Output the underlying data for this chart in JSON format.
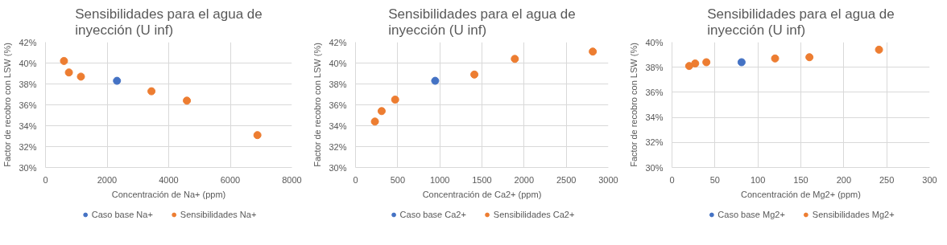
{
  "chart_data": [
    {
      "type": "scatter",
      "title": "Sensibilidades para el agua de inyección (U inf)",
      "xlabel": "Concentración de Na+ (ppm)",
      "ylabel": "Factor de recobro con LSW (%)",
      "xlim": [
        0,
        8000
      ],
      "xticks": [
        0,
        2000,
        4000,
        6000,
        8000
      ],
      "ylim": [
        30,
        42
      ],
      "yticks": [
        {
          "value": 30,
          "label": "30%"
        },
        {
          "value": 32,
          "label": "32%"
        },
        {
          "value": 34,
          "label": "34%"
        },
        {
          "value": 36,
          "label": "36%"
        },
        {
          "value": 38,
          "label": "38%"
        },
        {
          "value": 40,
          "label": "40%"
        },
        {
          "value": 42,
          "label": "42%"
        }
      ],
      "grid": true,
      "legend": "bottom",
      "marker": "circle",
      "series": [
        {
          "name": "Caso base Na+",
          "color": "#4472c4",
          "x": [
            2320
          ],
          "values": [
            38.3
          ]
        },
        {
          "name": "Sensibilidades Na+",
          "color": "#ed7d31",
          "x": [
            600,
            760,
            1150,
            3440,
            4590,
            6880
          ],
          "values": [
            40.2,
            39.1,
            38.7,
            37.3,
            36.4,
            33.1
          ]
        }
      ]
    },
    {
      "type": "scatter",
      "title": "Sensibilidades para el agua de inyección (U inf)",
      "xlabel": "Concentración de Ca2+ (ppm)",
      "ylabel": "Factor de recobro con LSW (%)",
      "xlim": [
        0,
        3000
      ],
      "xticks": [
        0,
        500,
        1000,
        1500,
        2000,
        2500,
        3000
      ],
      "ylim": [
        30,
        42
      ],
      "yticks": [
        {
          "value": 30,
          "label": "30%"
        },
        {
          "value": 32,
          "label": "32%"
        },
        {
          "value": 34,
          "label": "34%"
        },
        {
          "value": 36,
          "label": "36%"
        },
        {
          "value": 38,
          "label": "38%"
        },
        {
          "value": 40,
          "label": "40%"
        },
        {
          "value": 42,
          "label": "42%"
        }
      ],
      "grid": true,
      "legend": "bottom",
      "marker": "circle",
      "series": [
        {
          "name": "Caso base Ca2+",
          "color": "#4472c4",
          "x": [
            945
          ],
          "values": [
            38.3
          ]
        },
        {
          "name": "Sensibilidades Ca2+",
          "color": "#ed7d31",
          "x": [
            230,
            310,
            470,
            1410,
            1890,
            2815
          ],
          "values": [
            34.4,
            35.4,
            36.5,
            38.9,
            40.4,
            41.1
          ]
        }
      ]
    },
    {
      "type": "scatter",
      "title": "Sensibilidades para el agua de inyección (U inf)",
      "xlabel": "Concentración de Mg2+ (ppm)",
      "ylabel": "Factor de recobro con LSW (%)",
      "xlim": [
        0,
        300
      ],
      "xticks": [
        0,
        50,
        100,
        150,
        200,
        250,
        300
      ],
      "ylim": [
        30,
        40
      ],
      "yticks": [
        {
          "value": 30,
          "label": "30%"
        },
        {
          "value": 32,
          "label": "32%"
        },
        {
          "value": 34,
          "label": "34%"
        },
        {
          "value": 36,
          "label": "36%"
        },
        {
          "value": 38,
          "label": "38%"
        },
        {
          "value": 40,
          "label": "40%"
        }
      ],
      "grid": true,
      "legend": "bottom",
      "marker": "circle",
      "series": [
        {
          "name": "Caso base Mg2+",
          "color": "#4472c4",
          "x": [
            81
          ],
          "values": [
            38.4
          ]
        },
        {
          "name": "Sensibilidades Mg2+",
          "color": "#ed7d31",
          "x": [
            20,
            27,
            40,
            120,
            160,
            241
          ],
          "values": [
            38.1,
            38.3,
            38.4,
            38.7,
            38.8,
            39.4
          ]
        }
      ]
    }
  ]
}
